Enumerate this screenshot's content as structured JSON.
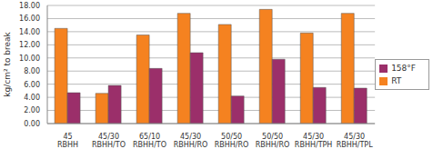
{
  "chart_data": {
    "type": "bar",
    "y_label": "kg/cm² to break",
    "categories": [
      "45 RBHH",
      "45/30 RBHH/TO",
      "65/10 RBHH/TO",
      "45/30 RBHH/RO",
      "50/50 RBHH/RO",
      "50/50 RBHH/RO",
      "45/30 RBHH/TPH",
      "45/30 RBHH/TPL"
    ],
    "series": [
      {
        "name": "RT",
        "color": "#f58220",
        "values": [
          14.5,
          4.6,
          13.5,
          16.8,
          15.1,
          17.4,
          13.8,
          16.8
        ]
      },
      {
        "name": "158°F",
        "color": "#9b2f6a",
        "values": [
          4.7,
          5.8,
          8.4,
          10.8,
          4.2,
          9.8,
          5.5,
          5.4
        ]
      }
    ],
    "ylim": [
      0,
      18
    ],
    "yticks": [
      {
        "value": 0,
        "label": "0.00"
      },
      {
        "value": 2,
        "label": "2.00"
      },
      {
        "value": 4,
        "label": "4.00"
      },
      {
        "value": 6,
        "label": "6.00"
      },
      {
        "value": 8,
        "label": "8.00"
      },
      {
        "value": 10,
        "label": "10.00"
      },
      {
        "value": 12,
        "label": "12.00"
      },
      {
        "value": 14,
        "label": "14.00"
      },
      {
        "value": 16,
        "label": "16.00"
      },
      {
        "value": 18,
        "label": "18.00"
      }
    ],
    "grid": true,
    "legend": "right"
  }
}
